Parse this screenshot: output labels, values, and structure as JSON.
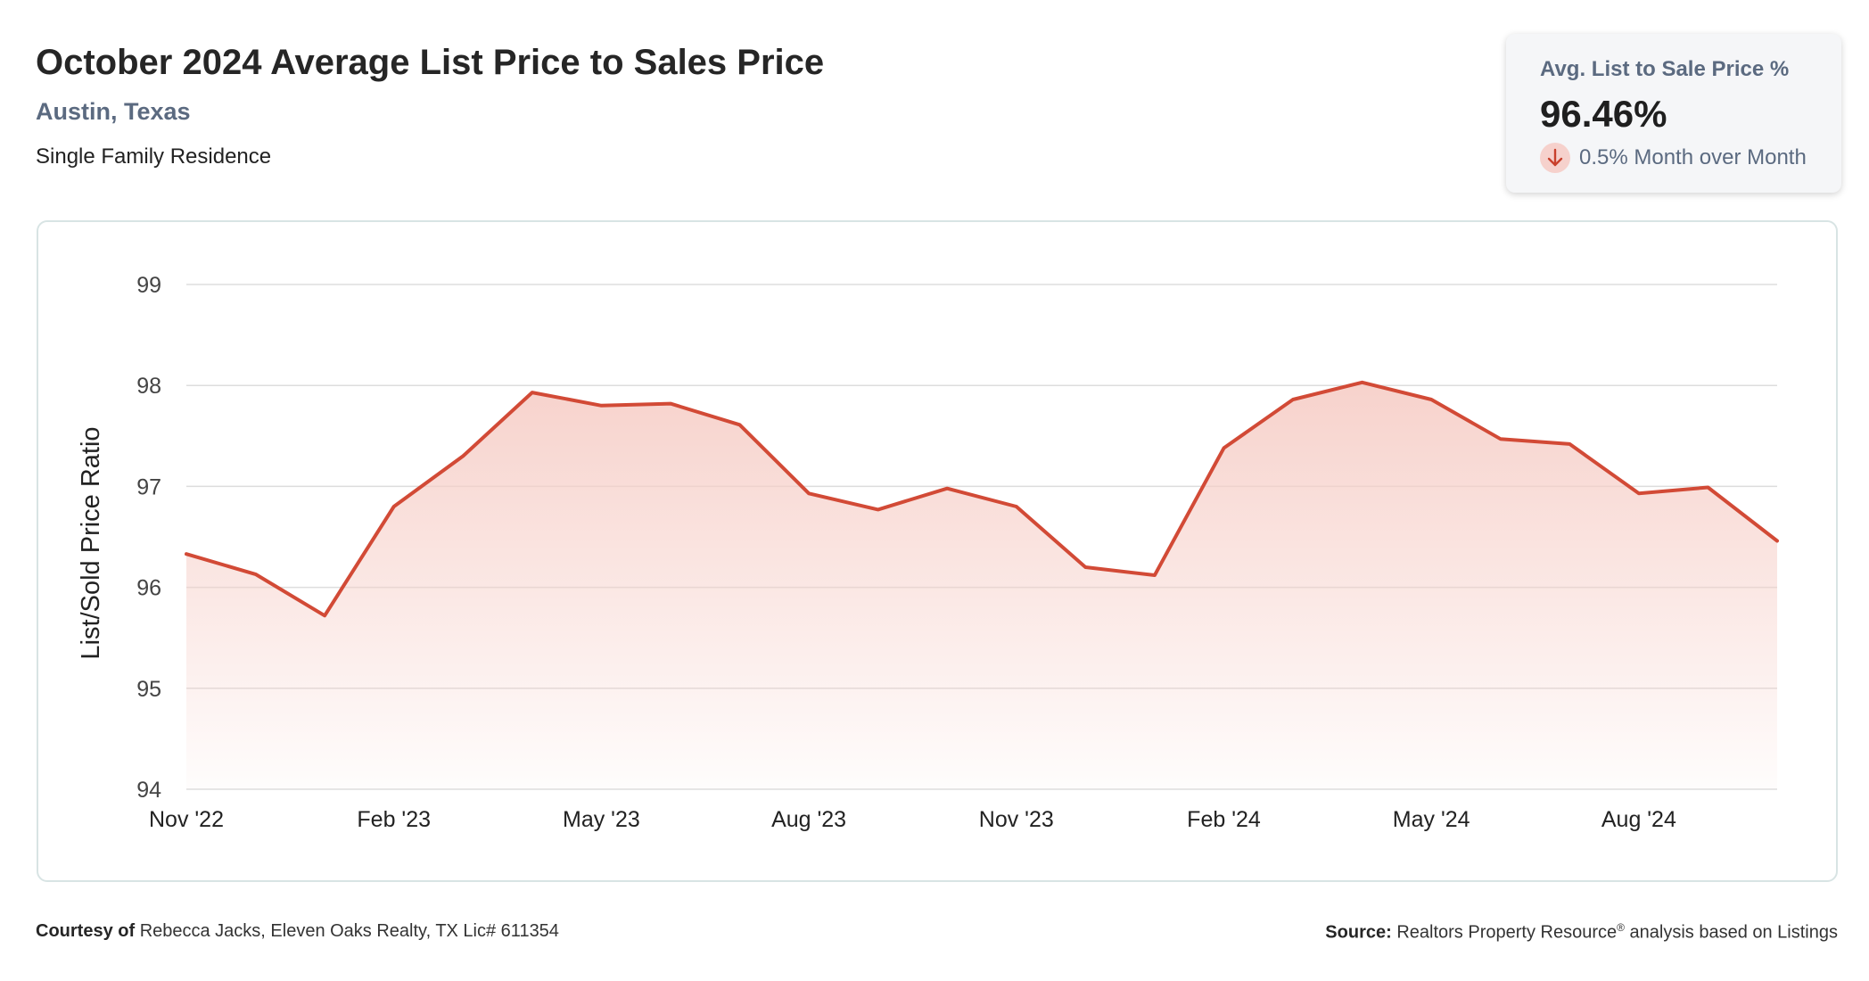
{
  "header": {
    "title": "October 2024 Average List Price to Sales Price",
    "location": "Austin, Texas",
    "property_type": "Single Family Residence"
  },
  "kpi": {
    "label": "Avg. List to Sale Price %",
    "value": "96.46%",
    "change_text": "0.5% Month over Month",
    "change_icon": "arrow-down-icon",
    "change_direction": "down"
  },
  "footer": {
    "courtesy_label": "Courtesy of",
    "courtesy_text": "Rebecca Jacks, Eleven Oaks Realty, TX Lic# 611354",
    "source_label": "Source:",
    "source_text_before": "Realtors Property Resource",
    "source_sup": "®",
    "source_text_after": " analysis based on Listings"
  },
  "colors": {
    "line": "#d24a36",
    "fill_top": "#f6cdc6",
    "grid": "#dddddd",
    "title": "#262626",
    "subtitle": "#5b6a80"
  },
  "chart_data": {
    "type": "area",
    "ylabel": "List/Sold Price Ratio",
    "xlabel": "",
    "ylim": [
      94,
      99
    ],
    "yticks": [
      99,
      98,
      97,
      96,
      95,
      94
    ],
    "grid": true,
    "x": [
      "Nov '22",
      "Dec '22",
      "Jan '23",
      "Feb '23",
      "Mar '23",
      "Apr '23",
      "May '23",
      "Jun '23",
      "Jul '23",
      "Aug '23",
      "Sep '23",
      "Oct '23",
      "Nov '23",
      "Dec '23",
      "Jan '24",
      "Feb '24",
      "Mar '24",
      "Apr '24",
      "May '24",
      "Jun '24",
      "Jul '24",
      "Aug '24",
      "Sep '24",
      "Oct '24"
    ],
    "xtick_labels": [
      "Nov '22",
      "Feb '23",
      "May '23",
      "Aug '23",
      "Nov '23",
      "Feb '24",
      "May '24",
      "Aug '24"
    ],
    "values": [
      96.33,
      96.13,
      95.72,
      96.8,
      97.3,
      97.93,
      97.8,
      97.82,
      97.61,
      96.93,
      96.77,
      96.98,
      96.8,
      96.2,
      96.12,
      97.38,
      97.86,
      98.03,
      97.86,
      97.47,
      97.42,
      96.93,
      96.99,
      96.46
    ]
  }
}
